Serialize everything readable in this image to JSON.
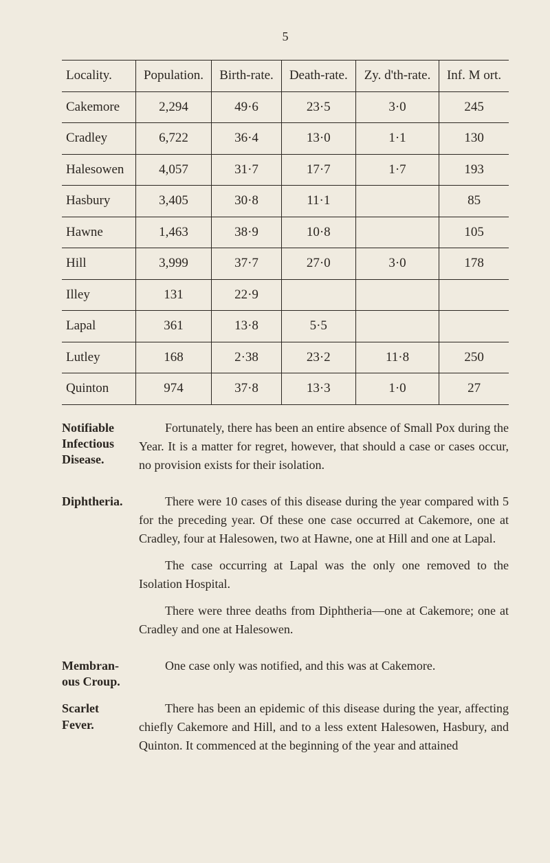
{
  "page_number": "5",
  "table": {
    "headers": [
      "Locality.",
      "Population.",
      "Birth-rate.",
      "Death-rate.",
      "Zy. d'th-rate.",
      "Inf. M ort."
    ],
    "rows": [
      [
        "Cakemore",
        "2,294",
        "49·6",
        "23·5",
        "3·0",
        "245"
      ],
      [
        "Cradley",
        "6,722",
        "36·4",
        "13·0",
        "1·1",
        "130"
      ],
      [
        "Halesowen",
        "4,057",
        "31·7",
        "17·7",
        "1·7",
        "193"
      ],
      [
        "Hasbury",
        "3,405",
        "30·8",
        "11·1",
        "",
        "85"
      ],
      [
        "Hawne",
        "1,463",
        "38·9",
        "10·8",
        "",
        "105"
      ],
      [
        "Hill",
        "3,999",
        "37·7",
        "27·0",
        "3·0",
        "178"
      ],
      [
        "Illey",
        "131",
        "22·9",
        "",
        "",
        ""
      ],
      [
        "Lapal",
        "361",
        "13·8",
        "5·5",
        "",
        ""
      ],
      [
        "Lutley",
        "168",
        "2·38",
        "23·2",
        "11·8",
        "250"
      ],
      [
        "Quinton",
        "974",
        "37·8",
        "13·3",
        "1·0",
        "27"
      ]
    ]
  },
  "sections": {
    "notifiable": {
      "label": "Notifiable Infectious Disease.",
      "p1": "Fortunately, there has been an entire absence of Small Pox during the Year.    It is a matter for regret, however, that should a case or cases occur, no provision exists for their isolation."
    },
    "diphtheria": {
      "label": "Diphtheria.",
      "p1": "There were 10 cases of this disease during the year compared with 5 for the preceding year.    Of these one case occurred at Cakemore, one at Cradley, four at Halesowen, two at Hawne, one at Hill and one at Lapal.",
      "p2": "The case occurring at Lapal was the only one removed to the Isolation Hospital.",
      "p3": "There were three deaths from Diphtheria—one at Cakemore; one at Cradley and one at Halesowen."
    },
    "membranous": {
      "label": "Membran-ous Croup.",
      "p1": "One case only was notified, and this was at Cakemore."
    },
    "scarlet": {
      "label": "Scarlet Fever.",
      "p1": "There has been an epidemic of this disease during the year, affecting chiefly Cakemore and Hill, and to a less extent Halesowen, Hasbury, and Quinton.    It commenced at the beginning of the year and attained"
    }
  }
}
